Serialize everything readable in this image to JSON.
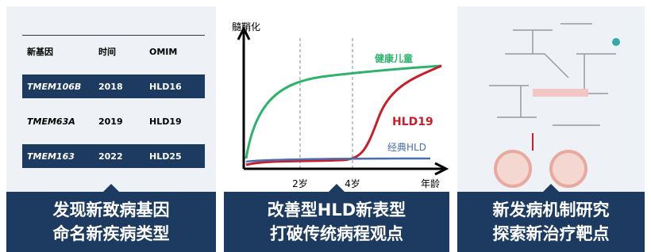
{
  "table": {
    "header": [
      "新基因",
      "时间",
      "OMIM"
    ],
    "rows": [
      [
        "TMEM106B",
        "2018",
        "HLD16"
      ],
      [
        "TMEM63A",
        "2019",
        "HLD19"
      ],
      [
        "TMEM163",
        "2022",
        "HLD25"
      ]
    ]
  },
  "chart": {
    "y_label": "髓鞘化",
    "x_label": "年龄",
    "x_ticks": [
      "2岁",
      "4岁"
    ],
    "curves": [
      "健康儿童",
      "HLD19",
      "经典HLD"
    ]
  },
  "banners": [
    [
      "发现新致病基因",
      "命名新疾病类型"
    ],
    [
      "改善型HLD新表型",
      "打破传统病程观点"
    ],
    [
      "新发病机制研究",
      "探索新治疗靶点"
    ]
  ]
}
